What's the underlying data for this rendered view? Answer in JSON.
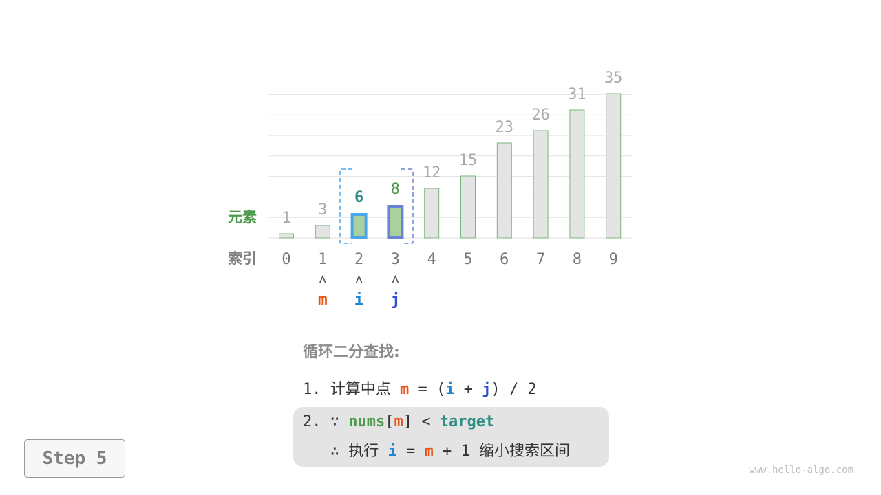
{
  "array": {
    "values": [
      1,
      3,
      6,
      8,
      12,
      15,
      23,
      26,
      31,
      35
    ],
    "indices": [
      "0",
      "1",
      "2",
      "3",
      "4",
      "5",
      "6",
      "7",
      "8",
      "9"
    ],
    "highlight": {
      "2": "i",
      "3": "j"
    },
    "row_labels": {
      "elements": "元素",
      "indices": "索引"
    }
  },
  "pointers": [
    {
      "name": "m",
      "index": 1,
      "color": "#e8541a"
    },
    {
      "name": "i",
      "index": 2,
      "color": "#1b85d0"
    },
    {
      "name": "j",
      "index": 3,
      "color": "#2f4fcc"
    }
  ],
  "colors": {
    "bar_fill": "#e4e4e4",
    "bar_stroke": "#7ab87a",
    "highlight_fill": "#a9d09f",
    "i_border": "#4aa6e8",
    "j_border": "#6b83d6",
    "label_gray": "#aaaaaa",
    "label_green": "#4e9a4e",
    "label_teal": "#2f8f86"
  },
  "description": {
    "title": "循环二分查找:",
    "step1": {
      "num": "1.",
      "text": "计算中点",
      "m": "m",
      "eq": "= (",
      "i": "i",
      "plus": "+",
      "j": "j",
      "rest": ") / 2"
    },
    "step2": {
      "num": "2.",
      "because": "∵",
      "nums": "nums",
      "lb": "[",
      "m": "m",
      "rb": "]",
      "lt": "<",
      "target": "target"
    },
    "step3": {
      "therefore": "∴",
      "exec": "执行",
      "i": "i",
      "eq": "=",
      "m": "m",
      "rest": "+ 1",
      "action": "缩小搜索区间"
    }
  },
  "step_label": "Step 5",
  "watermark": "www.hello-algo.com"
}
